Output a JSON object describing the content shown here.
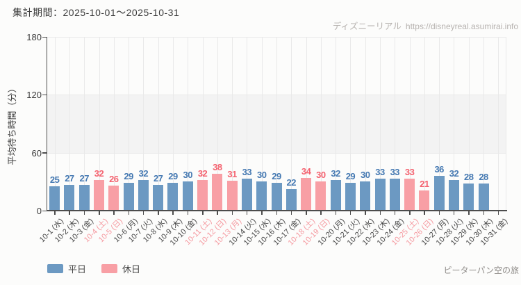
{
  "page": {
    "title": "集計期間：2025-10-01～2025-10-31",
    "watermark": {
      "site": "ディズニーリアル",
      "url": "https://disneyreal.asumirai.info"
    },
    "attraction": "ピーターパン空の旅"
  },
  "legend": {
    "weekday_label": "平日",
    "holiday_label": "休日"
  },
  "chart_data": {
    "type": "bar",
    "title": "集計期間：2025-10-01～2025-10-31",
    "xlabel": "",
    "ylabel": "平均待ち時間（分）",
    "ylim": [
      0,
      180
    ],
    "yticks": [
      0,
      60,
      120,
      180
    ],
    "grid": true,
    "legend_position": "bottom-left",
    "legend": [
      {
        "label": "平日",
        "type": "weekday",
        "color": "#6c99c2"
      },
      {
        "label": "休日",
        "type": "holiday",
        "color": "#f89fa5"
      }
    ],
    "value_label_colors": {
      "weekday": "#4579b2",
      "holiday": "#f4626f"
    },
    "tick_label_colors": {
      "weekday": "#474747",
      "holiday": "#f5989f"
    },
    "categories": [
      "10-1 (水)",
      "10-2 (木)",
      "10-3 (金)",
      "10-4 (土)",
      "10-5 (日)",
      "10-6 (月)",
      "10-7 (火)",
      "10-8 (水)",
      "10-9 (木)",
      "10-10 (金)",
      "10-11 (土)",
      "10-12 (日)",
      "10-13 (月)",
      "10-14 (火)",
      "10-15 (水)",
      "10-16 (木)",
      "10-17 (金)",
      "10-18 (土)",
      "10-19 (日)",
      "10-20 (月)",
      "10-21 (火)",
      "10-22 (水)",
      "10-23 (木)",
      "10-24 (金)",
      "10-25 (土)",
      "10-26 (日)",
      "10-27 (月)",
      "10-28 (火)",
      "10-29 (水)",
      "10-30 (木)",
      "10-31 (金)"
    ],
    "values": [
      25,
      27,
      27,
      32,
      26,
      29,
      32,
      27,
      29,
      30,
      32,
      38,
      31,
      33,
      30,
      29,
      22,
      34,
      30,
      32,
      29,
      30,
      33,
      33,
      33,
      21,
      36,
      32,
      28,
      28,
      null
    ],
    "day_type": [
      "weekday",
      "weekday",
      "weekday",
      "holiday",
      "holiday",
      "weekday",
      "weekday",
      "weekday",
      "weekday",
      "weekday",
      "holiday",
      "holiday",
      "holiday",
      "weekday",
      "weekday",
      "weekday",
      "weekday",
      "holiday",
      "holiday",
      "weekday",
      "weekday",
      "weekday",
      "weekday",
      "weekday",
      "holiday",
      "holiday",
      "weekday",
      "weekday",
      "weekday",
      "weekday",
      "weekday"
    ]
  },
  "style": {
    "background": "#fcfcfb",
    "band_color": "#f3f3f3",
    "grid_color": "#e9e9e9",
    "axis_color": "#4c4c4c"
  }
}
